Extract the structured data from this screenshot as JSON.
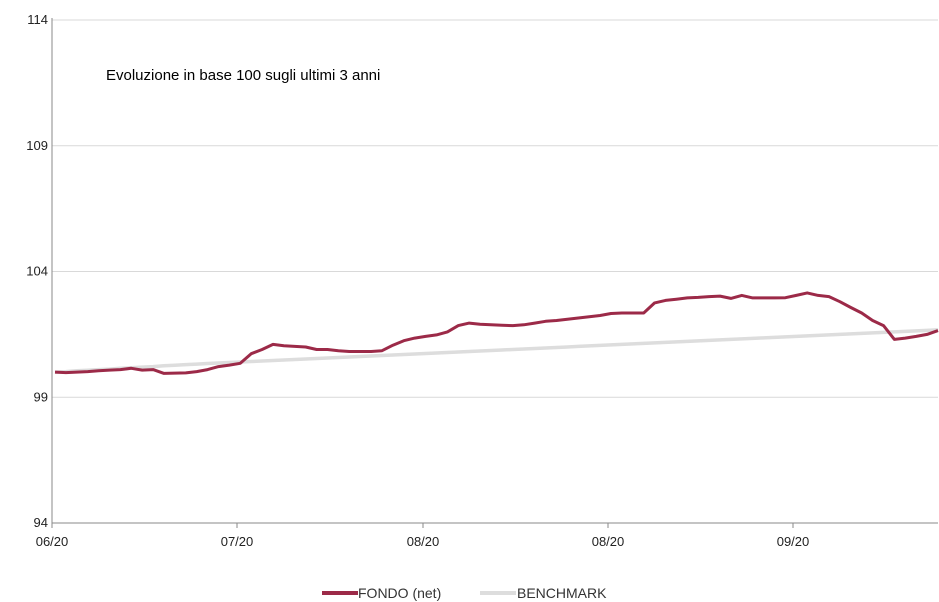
{
  "chart_data": {
    "type": "line",
    "title": "",
    "subtitle": "Evoluzione in base 100 sugli ultimi 3 anni",
    "xlabel": "",
    "ylabel": "",
    "ylim": [
      94,
      114
    ],
    "yticks": [
      94,
      99,
      104,
      109,
      114
    ],
    "xticks": [
      "06/20",
      "07/20",
      "08/20",
      "08/20",
      "09/20"
    ],
    "grid": "horizontal",
    "legend_position": "bottom-center",
    "series": [
      {
        "name": "FONDO (net)",
        "color": "#9c2a48",
        "values": [
          100.0,
          99.98,
          100.0,
          100.02,
          100.05,
          100.08,
          100.1,
          100.15,
          100.08,
          100.1,
          99.95,
          99.96,
          99.97,
          100.02,
          100.1,
          100.22,
          100.28,
          100.35,
          100.73,
          100.9,
          101.1,
          101.05,
          101.02,
          101.0,
          100.9,
          100.9,
          100.85,
          100.82,
          100.82,
          100.82,
          100.85,
          101.07,
          101.25,
          101.35,
          101.42,
          101.48,
          101.6,
          101.85,
          101.95,
          101.9,
          101.88,
          101.86,
          101.85,
          101.88,
          101.95,
          102.02,
          102.05,
          102.1,
          102.15,
          102.2,
          102.25,
          102.33,
          102.35,
          102.35,
          102.35,
          102.75,
          102.85,
          102.9,
          102.95,
          102.97,
          103.0,
          103.02,
          102.93,
          103.05,
          102.95,
          102.95,
          102.95,
          102.96,
          103.05,
          103.15,
          103.05,
          103.0,
          102.8,
          102.57,
          102.35,
          102.05,
          101.85,
          101.3,
          101.35,
          101.42,
          101.5,
          101.65
        ]
      },
      {
        "name": "BENCHMARK",
        "color": "#dddddd",
        "values": [
          100.0,
          100.02,
          100.05,
          100.07,
          100.1,
          100.12,
          100.15,
          100.17,
          100.2,
          100.22,
          100.25,
          100.27,
          100.3,
          100.32,
          100.34,
          100.36,
          100.38,
          100.4,
          100.42,
          100.44,
          100.46,
          100.48,
          100.5,
          100.52,
          100.54,
          100.56,
          100.58,
          100.6,
          100.62,
          100.64,
          100.66,
          100.68,
          100.7,
          100.72,
          100.74,
          100.76,
          100.78,
          100.8,
          100.82,
          100.84,
          100.86,
          100.88,
          100.9,
          100.92,
          100.94,
          100.96,
          100.98,
          101.0,
          101.02,
          101.04,
          101.06,
          101.08,
          101.1,
          101.12,
          101.14,
          101.16,
          101.18,
          101.2,
          101.22,
          101.24,
          101.26,
          101.28,
          101.3,
          101.32,
          101.34,
          101.36,
          101.38,
          101.4,
          101.42,
          101.44,
          101.46,
          101.48,
          101.5,
          101.52,
          101.54,
          101.56,
          101.58,
          101.6,
          101.62,
          101.64,
          101.66,
          101.68
        ]
      }
    ]
  }
}
